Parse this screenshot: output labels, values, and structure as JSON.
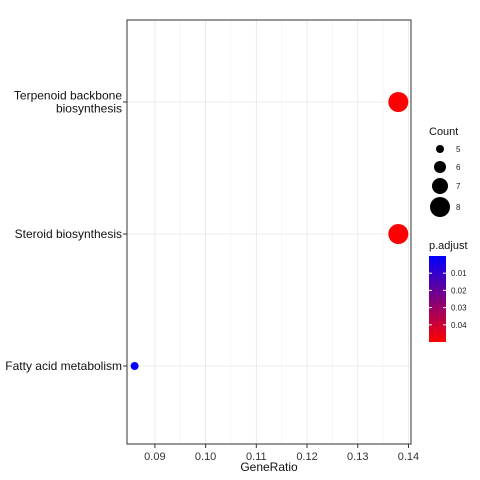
{
  "chart_data": {
    "type": "scatter",
    "xlabel": "GeneRatio",
    "xlim": [
      0.0845,
      0.1405
    ],
    "x_ticks": [
      0.09,
      0.1,
      0.11,
      0.12,
      0.13,
      0.14
    ],
    "x_tick_labels": [
      "0.09",
      "0.10",
      "0.11",
      "0.12",
      "0.13",
      "0.14"
    ],
    "categories": [
      {
        "label_lines": [
          "Terpenoid backbone",
          "biosynthesis"
        ]
      },
      {
        "label_lines": [
          "Steroid biosynthesis"
        ]
      },
      {
        "label_lines": [
          "Fatty acid metabolism"
        ]
      }
    ],
    "points": [
      {
        "category_index": 0,
        "x": 0.138,
        "count": 8,
        "p_adjust": 0.0005
      },
      {
        "category_index": 1,
        "x": 0.138,
        "count": 8,
        "p_adjust": 0.0005
      },
      {
        "category_index": 2,
        "x": 0.086,
        "count": 5,
        "p_adjust": 0.049
      }
    ],
    "grid": true,
    "legend_position": "right",
    "size_legend": {
      "title": "Count",
      "values": [
        5,
        6,
        7,
        8
      ],
      "labels": [
        "5",
        "6",
        "7",
        "8"
      ]
    },
    "color_legend": {
      "title": "p.adjust",
      "range": [
        0.0,
        0.05
      ],
      "ticks": [
        0.04,
        0.03,
        0.02,
        0.01
      ],
      "tick_labels": [
        "0.04",
        "0.03",
        "0.02",
        "0.01"
      ],
      "low_color": "#ff0000",
      "high_color": "#0000ff"
    }
  }
}
